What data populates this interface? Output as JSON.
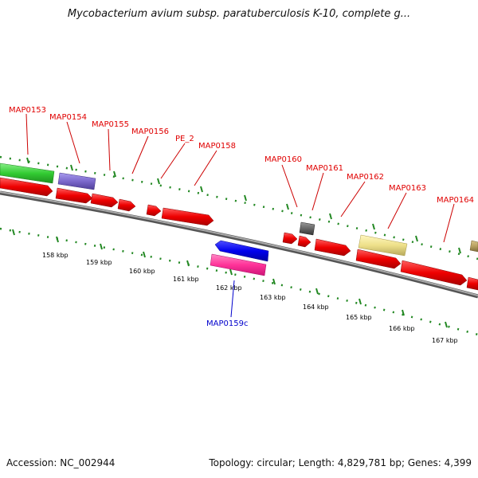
{
  "title": "Mycobacterium avium subsp. paratuberculosis K-10, complete g...",
  "footer": {
    "accession": "Accession: NC_002944",
    "topology": "Topology: circular; Length: 4,829,781 bp; Genes: 4,399"
  },
  "genes": [
    {
      "label": "MAP0153",
      "color": "#e00000"
    },
    {
      "label": "MAP0154",
      "color": "#e00000"
    },
    {
      "label": "MAP0155",
      "color": "#e00000"
    },
    {
      "label": "MAP0156",
      "color": "#e00000"
    },
    {
      "label": "PE_2",
      "color": "#e00000"
    },
    {
      "label": "MAP0158",
      "color": "#e00000"
    },
    {
      "label": "MAP0160",
      "color": "#e00000"
    },
    {
      "label": "MAP0161",
      "color": "#e00000"
    },
    {
      "label": "MAP0162",
      "color": "#e00000"
    },
    {
      "label": "MAP0163",
      "color": "#e00000"
    },
    {
      "label": "MAP0164",
      "color": "#e00000"
    },
    {
      "label": "MAP0159c",
      "color": "#0000cc"
    }
  ],
  "ticks": [
    "158 kbp",
    "159 kbp",
    "160 kbp",
    "161 kbp",
    "162 kbp",
    "163 kbp",
    "164 kbp",
    "165 kbp",
    "166 kbp",
    "167 kbp"
  ],
  "colors": {
    "forward_cds": "#ff0000",
    "reverse_cds": "#0000ee",
    "green_feature": "#33cc33",
    "purple_feature": "#7b68cc",
    "pink_feature": "#ff3399",
    "grey_feature": "#666666",
    "khaki_feature": "#eee08a",
    "olive_feature": "#b8a060",
    "backbone": "#888888",
    "ticks": "#228822"
  }
}
